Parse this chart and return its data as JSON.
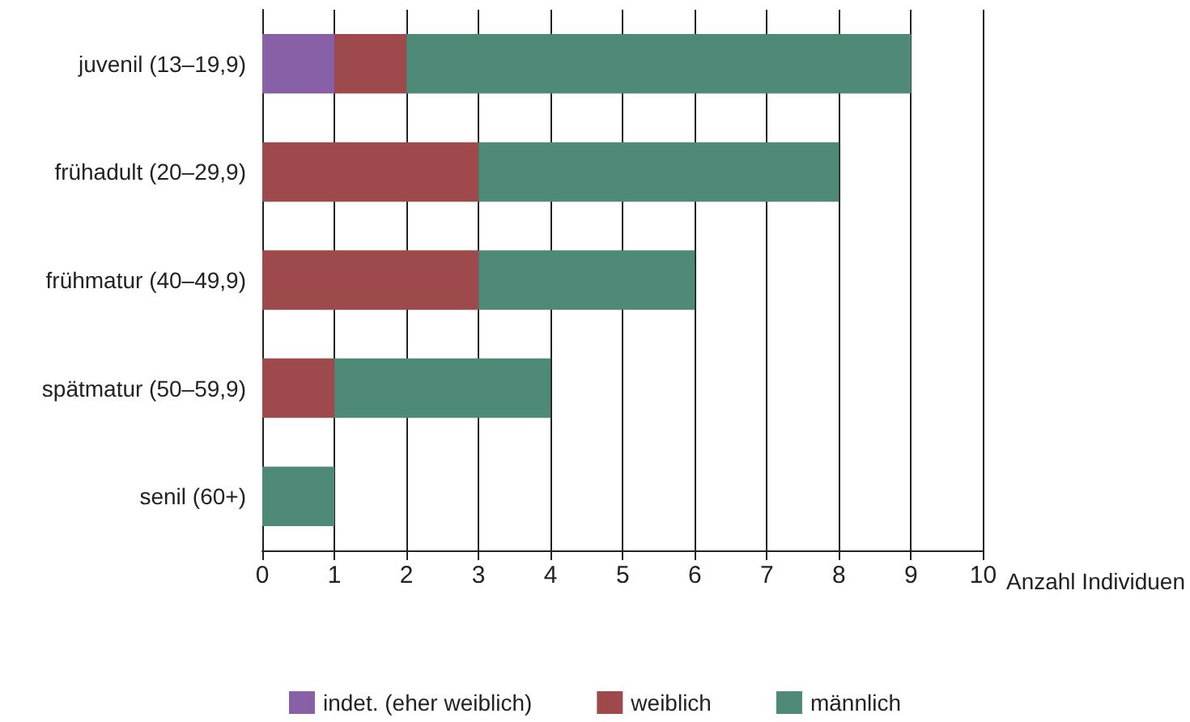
{
  "chart_data": {
    "type": "bar",
    "orientation": "horizontal",
    "stacked": true,
    "categories": [
      "juvenil (13–19,9)",
      "frühadult (20–29,9)",
      "frühmatur (40–49,9)",
      "spätmatur (50–59,9)",
      "senil (60+)"
    ],
    "series": [
      {
        "name": "indet. (eher weiblich)",
        "color": "#8860a8",
        "values": [
          1,
          0,
          0,
          0,
          0
        ]
      },
      {
        "name": "weiblich",
        "color": "#9e4a4c",
        "values": [
          1,
          3,
          3,
          1,
          0
        ]
      },
      {
        "name": "männlich",
        "color": "#4f8a78",
        "values": [
          7,
          5,
          3,
          3,
          1
        ]
      }
    ],
    "xlabel": "Anzahl Individuen",
    "xlim": [
      0,
      10
    ],
    "xticks": [
      0,
      1,
      2,
      3,
      4,
      5,
      6,
      7,
      8,
      9,
      10
    ],
    "grid": "x",
    "legend": "bottom"
  }
}
